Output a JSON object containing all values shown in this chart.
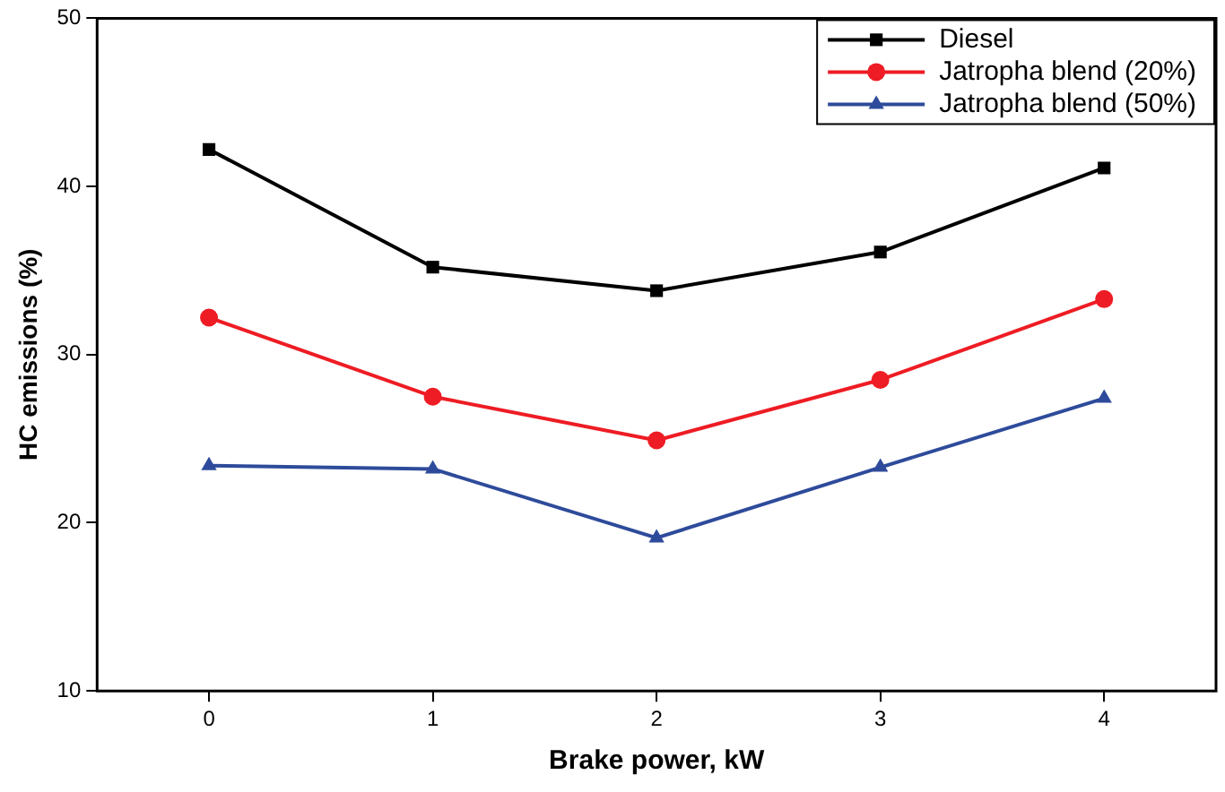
{
  "chart_data": {
    "type": "line",
    "xlabel": "Brake power, kW",
    "ylabel": "HC emissions (%)",
    "x": [
      0,
      1,
      2,
      3,
      4
    ],
    "xlim": [
      -0.5,
      4.5
    ],
    "xticks": [
      0,
      1,
      2,
      3,
      4
    ],
    "ylim": [
      10,
      50
    ],
    "yticks": [
      10,
      20,
      30,
      40,
      50
    ],
    "series": [
      {
        "name": "Diesel",
        "color": "#000000",
        "marker": "square",
        "values": [
          42.2,
          35.2,
          33.8,
          36.1,
          41.1
        ]
      },
      {
        "name": "Jatropha blend (20%)",
        "color": "#ee1c24",
        "marker": "circle",
        "values": [
          32.2,
          27.5,
          24.9,
          28.5,
          33.3
        ]
      },
      {
        "name": "Jatropha blend (50%)",
        "color": "#2e4b9b",
        "marker": "triangle",
        "values": [
          23.4,
          23.2,
          19.1,
          23.3,
          27.4
        ]
      }
    ],
    "legend": "top right",
    "grid": false
  }
}
